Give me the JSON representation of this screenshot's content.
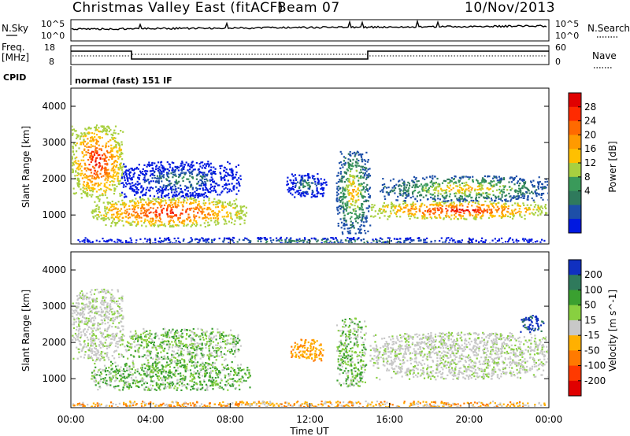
{
  "header": {
    "title": "Christmas Valley East (fitACF)",
    "beam": "Beam 07",
    "date": "10/Nov/2013"
  },
  "strips": {
    "nsky_label": "N.Sky",
    "nsky_ticks": [
      "10^5",
      "10^0"
    ],
    "nsearch_label": "N.Search",
    "nsearch_ticks": [
      "10^5",
      "10^0"
    ],
    "freq_label_1": "Freq.",
    "freq_label_2": "[MHz]",
    "freq_ticks": [
      "18",
      "8"
    ],
    "nave_label": "Nave",
    "nave_ticks": [
      "60",
      "0"
    ],
    "cpid_label": "CPID",
    "cpid_value": "normal (fast) 151 IF"
  },
  "colorbars": {
    "power": {
      "label": "Power [dB]",
      "ticks": [
        "28",
        "24",
        "20",
        "16",
        "12",
        "8",
        "4"
      ],
      "colors": [
        "#e00000",
        "#ff2a00",
        "#ff6a00",
        "#ff9a00",
        "#ffc000",
        "#a8d040",
        "#3a9a5a",
        "#2f7a5c",
        "#1d4fa8",
        "#0018e0"
      ]
    },
    "velocity": {
      "label": "Velocity [m s^-1]",
      "ticks": [
        "200",
        "100",
        "50",
        "15",
        "-15",
        "-50",
        "-100",
        "-200"
      ],
      "colors": [
        "#1030c0",
        "#2f7a5c",
        "#3aa030",
        "#88d040",
        "#c8c8c8",
        "#ffb000",
        "#ff7a00",
        "#ff3a00",
        "#e00000"
      ]
    }
  },
  "chart_data": [
    {
      "type": "heatmap",
      "title": "Power",
      "xlabel": "",
      "ylabel": "Slant Range [km]",
      "x_ticks": [
        "00:00",
        "04:00",
        "08:00",
        "12:00",
        "16:00",
        "20:00",
        "00:00"
      ],
      "y_ticks": [
        "1000",
        "2000",
        "3000",
        "4000"
      ],
      "xlim_hours": [
        0,
        24
      ],
      "ylim_km": [
        200,
        4500
      ],
      "regions": [
        {
          "x": [
            0.0,
            2.6
          ],
          "y": [
            1500,
            3500
          ],
          "level": "high"
        },
        {
          "x": [
            1.0,
            8.8
          ],
          "y": [
            700,
            1500
          ],
          "level": "high"
        },
        {
          "x": [
            2.5,
            8.5
          ],
          "y": [
            1500,
            2500
          ],
          "level": "low"
        },
        {
          "x": [
            10.8,
            12.8
          ],
          "y": [
            1500,
            2200
          ],
          "level": "low"
        },
        {
          "x": [
            13.3,
            15.0
          ],
          "y": [
            500,
            2800
          ],
          "level": "mid"
        },
        {
          "x": [
            15.0,
            24.0
          ],
          "y": [
            900,
            1400
          ],
          "level": "high"
        },
        {
          "x": [
            15.5,
            24.0
          ],
          "y": [
            1400,
            2100
          ],
          "level": "mid"
        },
        {
          "x": [
            0.0,
            24.0
          ],
          "y": [
            200,
            400
          ],
          "level": "low"
        }
      ]
    },
    {
      "type": "heatmap",
      "title": "Velocity",
      "xlabel": "Time UT",
      "ylabel": "Slant Range [km]",
      "x_ticks": [
        "00:00",
        "04:00",
        "08:00",
        "12:00",
        "16:00",
        "20:00",
        "00:00"
      ],
      "y_ticks": [
        "1000",
        "2000",
        "3000",
        "4000"
      ],
      "xlim_hours": [
        0,
        24
      ],
      "ylim_km": [
        200,
        4500
      ],
      "regions": [
        {
          "x": [
            0.0,
            2.6
          ],
          "y": [
            1500,
            3500
          ],
          "value": "-15 to 15"
        },
        {
          "x": [
            1.0,
            9.0
          ],
          "y": [
            700,
            1500
          ],
          "value": "15 to 100"
        },
        {
          "x": [
            2.5,
            8.5
          ],
          "y": [
            1500,
            2400
          ],
          "value": "15 to 50"
        },
        {
          "x": [
            11.0,
            12.7
          ],
          "y": [
            1500,
            2100
          ],
          "value": "-100 to -50"
        },
        {
          "x": [
            13.3,
            14.8
          ],
          "y": [
            800,
            2700
          ],
          "value": "15 to 50"
        },
        {
          "x": [
            15.0,
            24.0
          ],
          "y": [
            1000,
            2300
          ],
          "value": "-15 to 15"
        },
        {
          "x": [
            22.5,
            23.7
          ],
          "y": [
            2300,
            2800
          ],
          "value": "above 100"
        },
        {
          "x": [
            0.0,
            24.0
          ],
          "y": [
            200,
            400
          ],
          "value": "-50 to -15"
        }
      ]
    }
  ]
}
